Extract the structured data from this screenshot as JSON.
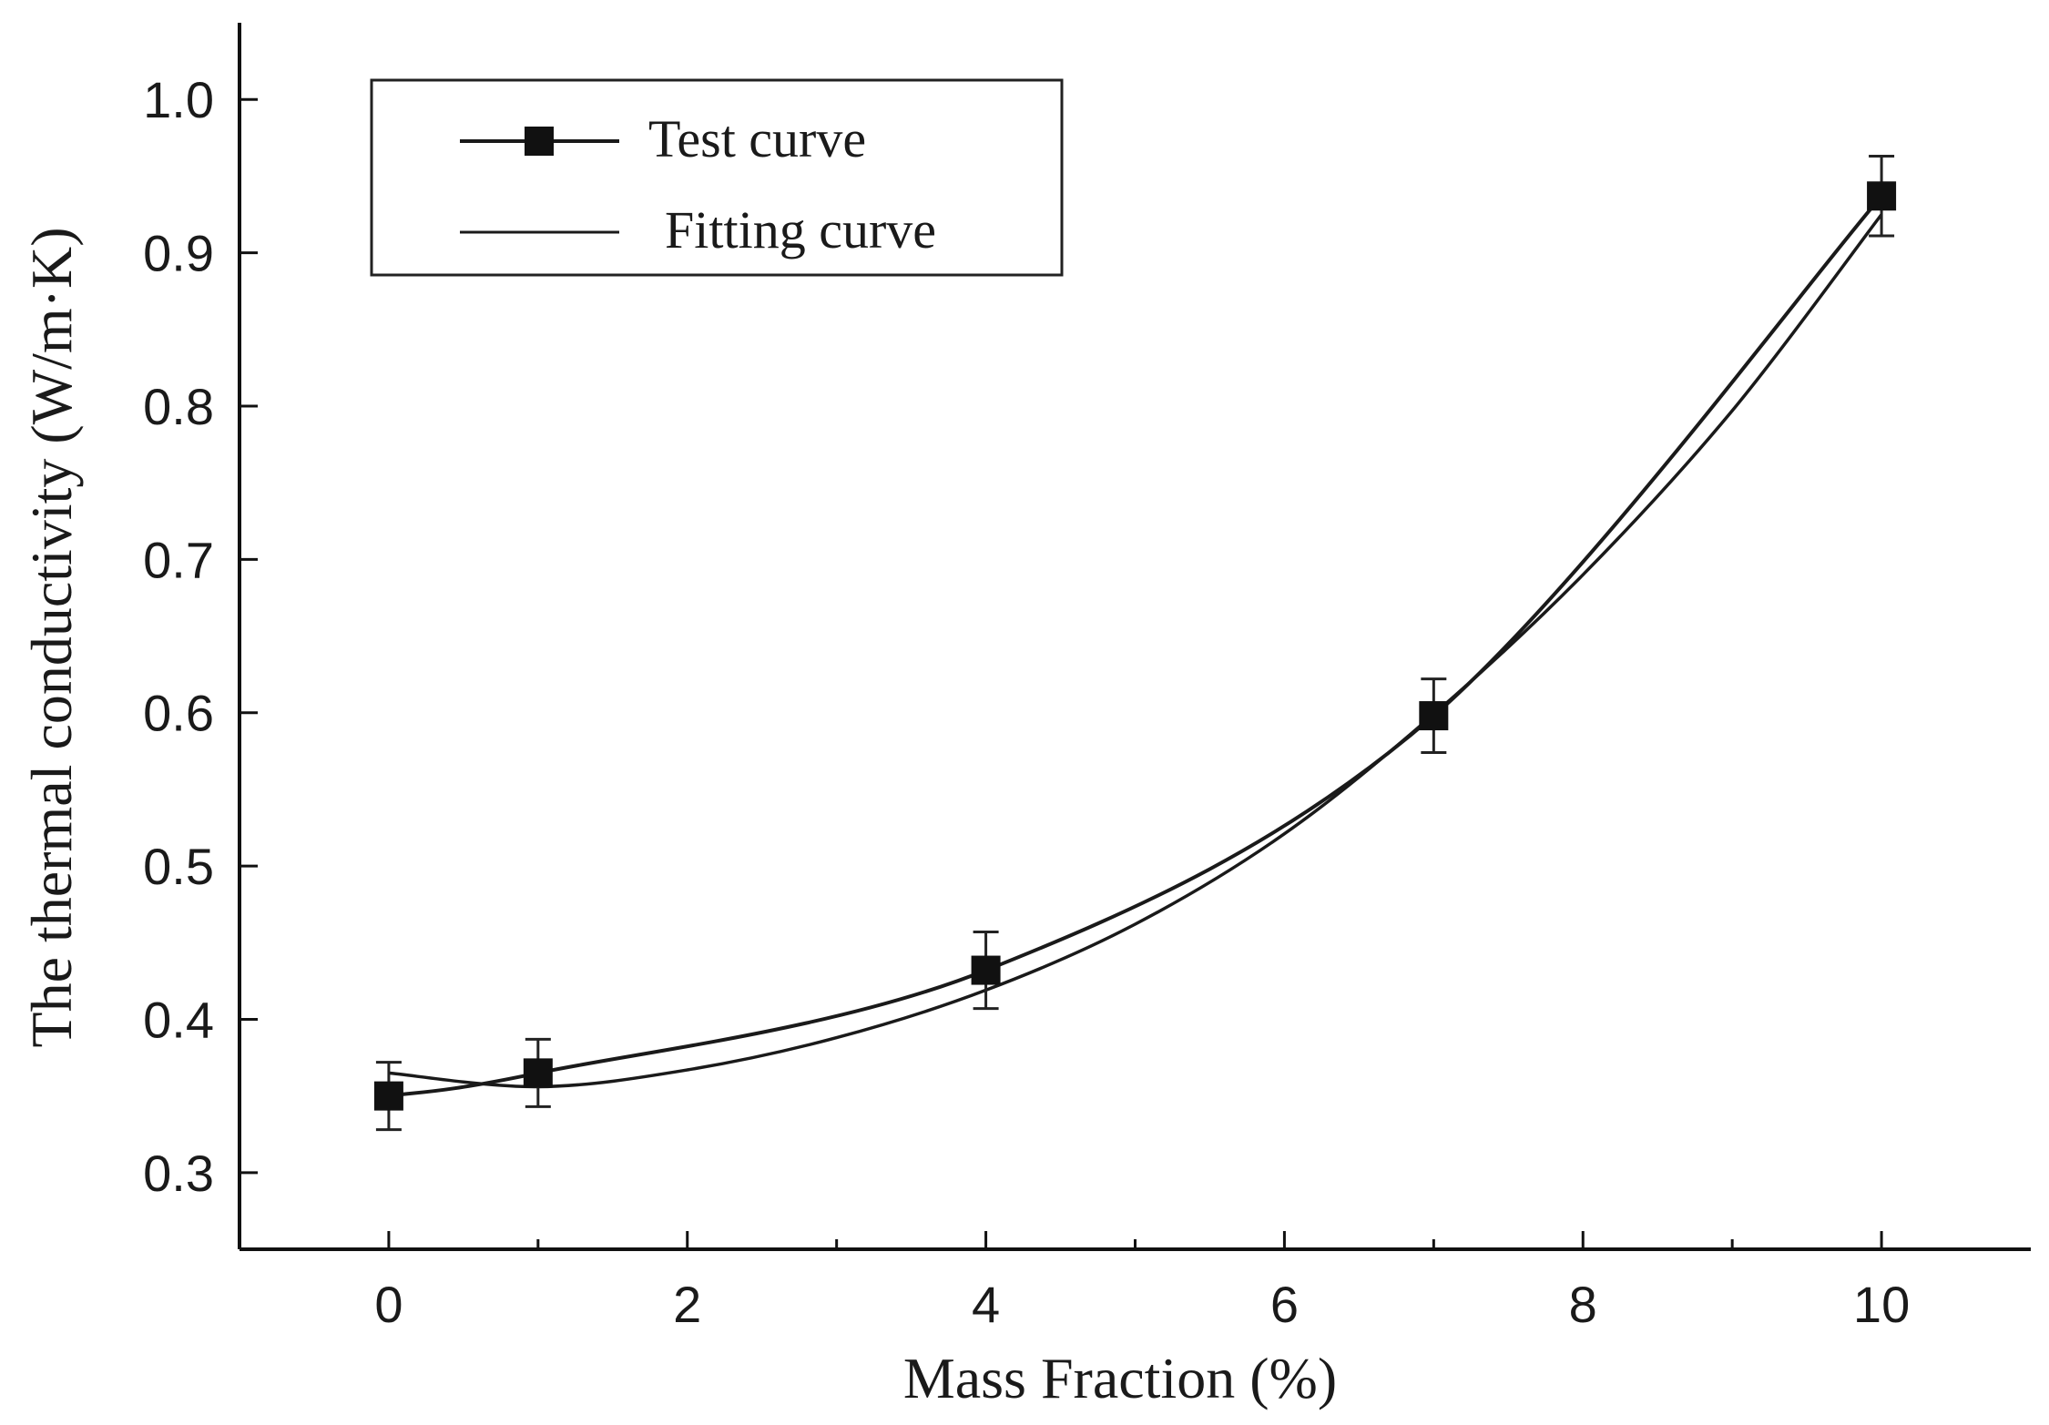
{
  "chart_data": {
    "type": "line",
    "title": "",
    "xlabel": "Mass Fraction (%)",
    "ylabel": "The thermal conductivity (W/m·K)",
    "xlim": [
      -1,
      11
    ],
    "ylim": [
      0.25,
      1.05
    ],
    "xticks": [
      0,
      2,
      4,
      6,
      8,
      10
    ],
    "xtick_labels": [
      "0",
      "2",
      "4",
      "6",
      "8",
      "10"
    ],
    "x_minor_ticks": [
      1,
      3,
      5,
      7,
      9
    ],
    "yticks": [
      0.3,
      0.4,
      0.5,
      0.6,
      0.7,
      0.8,
      0.9,
      1.0
    ],
    "ytick_labels": [
      "0.3",
      "0.4",
      "0.5",
      "0.6",
      "0.7",
      "0.8",
      "0.9",
      "1.0"
    ],
    "grid": false,
    "legend_position": "top-left",
    "series": [
      {
        "name": "Test curve",
        "marker": "square",
        "x": [
          0,
          1,
          4,
          7,
          10
        ],
        "y": [
          0.35,
          0.365,
          0.432,
          0.598,
          0.937
        ],
        "error": [
          0.022,
          0.022,
          0.025,
          0.024,
          0.026
        ],
        "color": "#1a1a1a"
      },
      {
        "name": "Fitting curve",
        "marker": "none",
        "x": [
          0,
          1,
          2,
          3,
          4,
          5,
          6,
          7,
          8,
          9,
          10
        ],
        "y": [
          0.365,
          0.356,
          0.367,
          0.388,
          0.419,
          0.462,
          0.521,
          0.599,
          0.69,
          0.797,
          0.925
        ],
        "color": "#1a1a1a"
      }
    ]
  }
}
